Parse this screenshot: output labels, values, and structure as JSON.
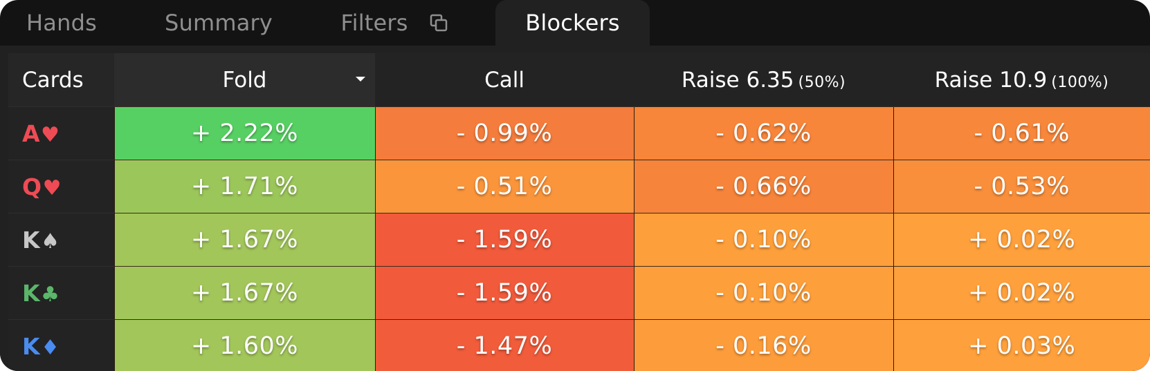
{
  "tabs": [
    {
      "label": "Hands",
      "active": false
    },
    {
      "label": "Summary",
      "active": false
    },
    {
      "label": "Filters",
      "active": false,
      "icon": "copy-icon"
    },
    {
      "label": "Blockers",
      "active": true
    }
  ],
  "table": {
    "headers": {
      "cards": "Cards",
      "fold": "Fold",
      "call": "Call",
      "raise1": {
        "label": "Raise 6.35",
        "sub": "(50%)"
      },
      "raise2": {
        "label": "Raise 10.9",
        "sub": "(100%)"
      }
    },
    "sort_icon": "chevron-down-icon",
    "rows": [
      {
        "rank": "A",
        "suit": "♥",
        "suit_color": "#ef4b55",
        "fold": "+ 2.22%",
        "call": "- 0.99%",
        "raise1": "- 0.62%",
        "raise2": "- 0.61%",
        "colors": [
          "#57d063",
          "#f47c3c",
          "#f7853a",
          "#f7873b"
        ]
      },
      {
        "rank": "Q",
        "suit": "♥",
        "suit_color": "#ef4b55",
        "fold": "+ 1.71%",
        "call": "- 0.51%",
        "raise1": "- 0.66%",
        "raise2": "- 0.53%",
        "colors": [
          "#9bc65a",
          "#fa953b",
          "#f6843a",
          "#f98f3b"
        ]
      },
      {
        "rank": "K",
        "suit": "♠",
        "suit_color": "#c7c7c7",
        "fold": "+ 1.67%",
        "call": "- 1.59%",
        "raise1": "- 0.10%",
        "raise2": "+ 0.02%",
        "colors": [
          "#a2c65a",
          "#f15a3b",
          "#fd9f3b",
          "#fea03b"
        ]
      },
      {
        "rank": "K",
        "suit": "♣",
        "suit_color": "#5bb66a",
        "fold": "+ 1.67%",
        "call": "- 1.59%",
        "raise1": "- 0.10%",
        "raise2": "+ 0.02%",
        "colors": [
          "#a2c65a",
          "#f15a3b",
          "#fd9f3b",
          "#fea03b"
        ]
      },
      {
        "rank": "K",
        "suit": "♦",
        "suit_color": "#4a8cf0",
        "fold": "+ 1.60%",
        "call": "- 1.47%",
        "raise1": "- 0.16%",
        "raise2": "+ 0.03%",
        "colors": [
          "#a2c65a",
          "#f15c3b",
          "#fd9c3b",
          "#fea03b"
        ]
      }
    ]
  }
}
